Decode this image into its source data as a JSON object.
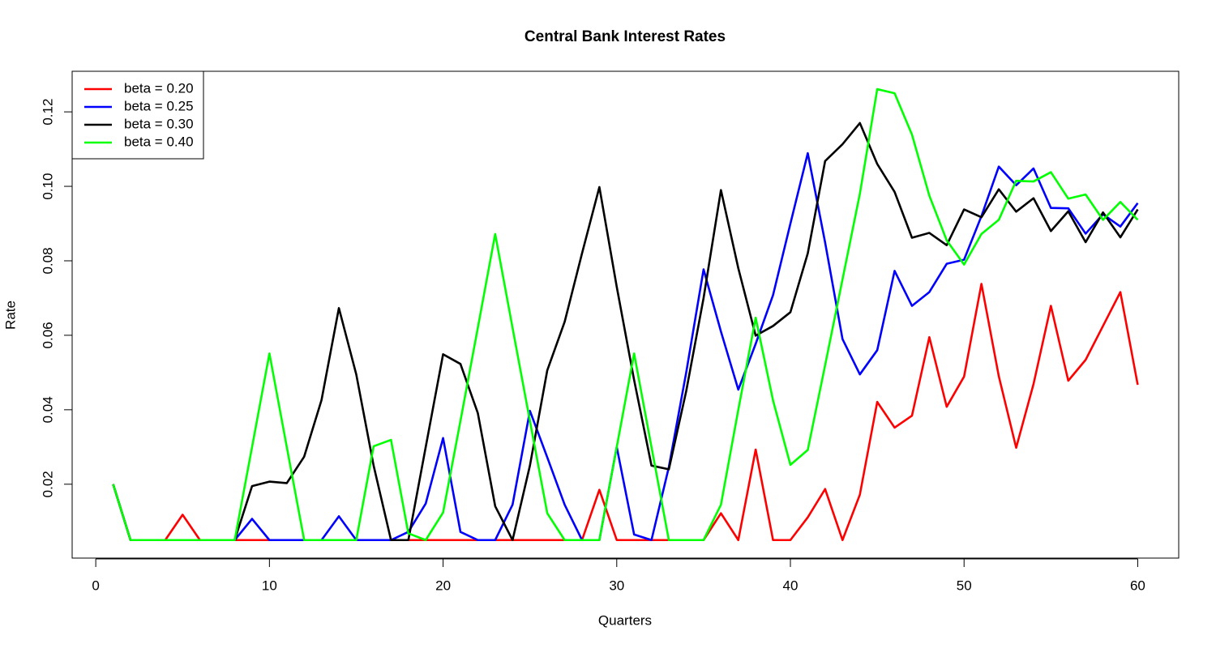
{
  "chart_data": {
    "type": "line",
    "title": "Central Bank Interest Rates",
    "x_label": "Quarters",
    "y_label": "Rate",
    "x": [
      1,
      2,
      3,
      4,
      5,
      6,
      7,
      8,
      9,
      10,
      11,
      12,
      13,
      14,
      15,
      16,
      17,
      18,
      19,
      20,
      21,
      22,
      23,
      24,
      25,
      26,
      27,
      28,
      29,
      30,
      31,
      32,
      33,
      34,
      35,
      36,
      37,
      38,
      39,
      40,
      41,
      42,
      43,
      44,
      45,
      46,
      47,
      48,
      49,
      50,
      51,
      52,
      53,
      54,
      55,
      56,
      57,
      58,
      59,
      60
    ],
    "xlim": [
      -1.36,
      62.36
    ],
    "xticks": [
      0,
      10,
      20,
      30,
      40,
      50,
      60
    ],
    "ylim": [
      0.00016,
      0.1309
    ],
    "yticks": [
      0.02,
      0.04,
      0.06,
      0.08,
      {
        "value": 0.1,
        "label": "0.10"
      },
      0.12
    ],
    "legend_position": "top-left",
    "series": [
      {
        "name": "beta = 0.20",
        "color": "#ff0000",
        "values": [
          0.02,
          0.005,
          0.005,
          0.005,
          0.0118,
          0.005,
          0.005,
          0.005,
          0.005,
          0.005,
          0.005,
          0.005,
          0.005,
          0.005,
          0.005,
          0.005,
          0.005,
          0.005,
          0.005,
          0.005,
          0.005,
          0.005,
          0.005,
          0.005,
          0.005,
          0.005,
          0.005,
          0.005,
          0.0185,
          0.005,
          0.005,
          0.005,
          0.005,
          0.005,
          0.005,
          0.0122,
          0.005,
          0.0293,
          0.005,
          0.005,
          0.0111,
          0.0187,
          0.005,
          0.0172,
          0.0421,
          0.0352,
          0.0384,
          0.0595,
          0.0408,
          0.0489,
          0.0738,
          0.049,
          0.0298,
          0.0469,
          0.0679,
          0.0478,
          0.0534,
          0.0625,
          0.0716,
          0.0467
        ]
      },
      {
        "name": "beta = 0.25",
        "color": "#0000ff",
        "values": [
          0.02,
          0.005,
          0.005,
          0.005,
          0.005,
          0.005,
          0.005,
          0.005,
          0.0107,
          0.005,
          0.005,
          0.005,
          0.005,
          0.0114,
          0.005,
          0.005,
          0.005,
          0.0072,
          0.0148,
          0.0324,
          0.0072,
          0.005,
          0.005,
          0.0145,
          0.0397,
          0.0272,
          0.0145,
          0.005,
          0.005,
          0.03,
          0.0065,
          0.005,
          0.0246,
          0.05,
          0.0777,
          0.061,
          0.0454,
          0.0577,
          0.0708,
          0.09,
          0.1089,
          0.0849,
          0.059,
          0.0495,
          0.056,
          0.0773,
          0.0679,
          0.0716,
          0.0792,
          0.0803,
          0.092,
          0.1053,
          0.1003,
          0.1048,
          0.0942,
          0.0941,
          0.0873,
          0.0925,
          0.0892,
          0.0955
        ]
      },
      {
        "name": "beta = 0.30",
        "color": "#000000",
        "values": [
          0.02,
          0.005,
          0.005,
          0.005,
          0.005,
          0.005,
          0.005,
          0.005,
          0.0195,
          0.0207,
          0.0203,
          0.0274,
          0.0426,
          0.0673,
          0.0495,
          0.025,
          0.005,
          0.005,
          0.03,
          0.0549,
          0.0523,
          0.0391,
          0.0141,
          0.005,
          0.025,
          0.0506,
          0.0636,
          0.082,
          0.0998,
          0.073,
          0.048,
          0.025,
          0.024,
          0.045,
          0.07,
          0.099,
          0.078,
          0.0599,
          0.0625,
          0.0662,
          0.082,
          0.1068,
          0.1113,
          0.117,
          0.106,
          0.0985,
          0.0862,
          0.0875,
          0.0842,
          0.0938,
          0.0917,
          0.0992,
          0.0932,
          0.0968,
          0.088,
          0.0933,
          0.085,
          0.093,
          0.0863,
          0.0938
        ]
      },
      {
        "name": "beta = 0.40",
        "color": "#00ff00",
        "values": [
          0.02,
          0.005,
          0.005,
          0.005,
          0.005,
          0.005,
          0.005,
          0.005,
          0.03,
          0.0551,
          0.03,
          0.005,
          0.005,
          0.005,
          0.005,
          0.0302,
          0.0319,
          0.0068,
          0.005,
          0.0124,
          0.037,
          0.062,
          0.0872,
          0.062,
          0.037,
          0.0122,
          0.005,
          0.005,
          0.005,
          0.03,
          0.0551,
          0.03,
          0.005,
          0.005,
          0.005,
          0.0145,
          0.04,
          0.0647,
          0.0425,
          0.0252,
          0.0292,
          0.052,
          0.075,
          0.098,
          0.1261,
          0.125,
          0.1139,
          0.0975,
          0.0855,
          0.079,
          0.0872,
          0.091,
          0.1015,
          0.1013,
          0.1038,
          0.0967,
          0.0978,
          0.091,
          0.0958,
          0.091
        ]
      }
    ]
  }
}
